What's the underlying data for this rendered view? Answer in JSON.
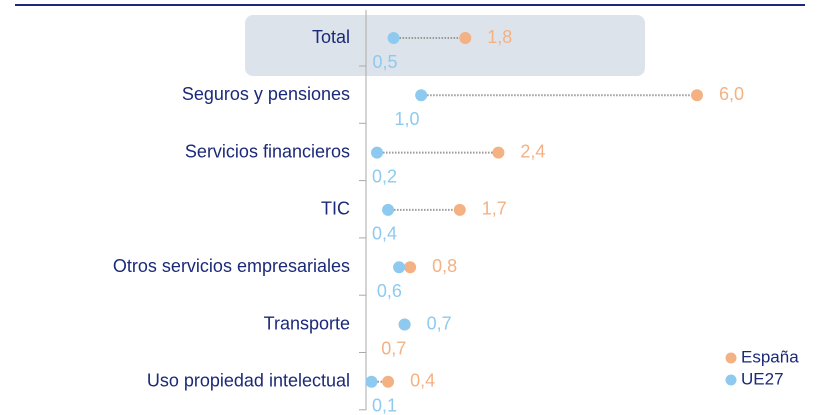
{
  "chart_data": {
    "type": "dot",
    "categories": [
      "Total",
      "Seguros y pensiones",
      "Servicios financieros",
      "TIC",
      "Otros servicios empresariales",
      "Transporte",
      "Uso propiedad intelectual"
    ],
    "series": [
      {
        "name": "España",
        "color": "#f4b183",
        "values": [
          1.8,
          6.0,
          2.4,
          1.7,
          0.8,
          0.7,
          0.4
        ],
        "value_labels": [
          "1,8",
          "6,0",
          "2,4",
          "1,7",
          "0,8",
          "0,7",
          "0,4"
        ]
      },
      {
        "name": "UE27",
        "color": "#8ecaf0",
        "values": [
          0.5,
          1.0,
          0.2,
          0.4,
          0.6,
          0.7,
          0.1
        ],
        "value_labels": [
          "0,5",
          "1,0",
          "0,2",
          "0,4",
          "0,6",
          "0,7",
          "0,1"
        ]
      }
    ],
    "xlim": [
      0,
      6
    ],
    "legend": "lower right"
  }
}
